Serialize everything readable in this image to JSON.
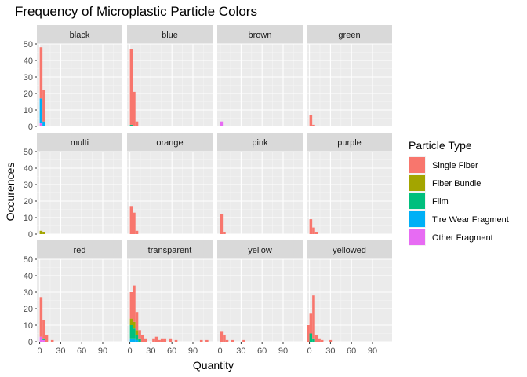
{
  "chart_data": {
    "type": "bar",
    "title": "Frequency of Microplastic Particle Colors",
    "xlabel": "Quantity",
    "ylabel": "Occurences",
    "xlim": [
      -4,
      118
    ],
    "ylim": [
      0,
      50
    ],
    "x_ticks": [
      0,
      30,
      60,
      90
    ],
    "y_ticks": [
      0,
      10,
      20,
      30,
      40,
      50
    ],
    "bin_width": 4,
    "grid": true,
    "legend": {
      "title": "Particle Type",
      "position": "right",
      "items": [
        {
          "name": "Single Fiber",
          "color": "#F8766D"
        },
        {
          "name": "Fiber Bundle",
          "color": "#A3A500"
        },
        {
          "name": "Film",
          "color": "#00BF7D"
        },
        {
          "name": "Tire Wear Fragment",
          "color": "#00B0F6"
        },
        {
          "name": "Other Fragment",
          "color": "#E76BF3"
        }
      ]
    },
    "panels": [
      {
        "label": "black",
        "stacks": [
          {
            "x": 0,
            "counts": [
              31,
              0,
              0,
              15,
              2
            ]
          },
          {
            "x": 4,
            "counts": [
              19,
              0,
              0,
              3,
              0
            ]
          }
        ]
      },
      {
        "label": "blue",
        "stacks": [
          {
            "x": 0,
            "counts": [
              46,
              0,
              1,
              0,
              0
            ]
          },
          {
            "x": 4,
            "counts": [
              21,
              0,
              0,
              0,
              0
            ]
          },
          {
            "x": 8,
            "counts": [
              3,
              0,
              0,
              0,
              0
            ]
          }
        ]
      },
      {
        "label": "brown",
        "stacks": [
          {
            "x": 0,
            "counts": [
              0,
              0,
              0,
              0,
              3
            ]
          }
        ]
      },
      {
        "label": "green",
        "stacks": [
          {
            "x": 0,
            "counts": [
              7,
              0,
              0,
              0,
              0
            ]
          },
          {
            "x": 4,
            "counts": [
              1,
              0,
              0,
              0,
              0
            ]
          }
        ]
      },
      {
        "label": "multi",
        "stacks": [
          {
            "x": 0,
            "counts": [
              0,
              2,
              0,
              0,
              0
            ]
          },
          {
            "x": 4,
            "counts": [
              0,
              1,
              0,
              0,
              0
            ]
          }
        ]
      },
      {
        "label": "orange",
        "stacks": [
          {
            "x": 0,
            "counts": [
              17,
              0,
              0,
              0,
              0
            ]
          },
          {
            "x": 4,
            "counts": [
              13,
              0,
              0,
              0,
              0
            ]
          },
          {
            "x": 8,
            "counts": [
              2,
              0,
              0,
              0,
              0
            ]
          }
        ]
      },
      {
        "label": "pink",
        "stacks": [
          {
            "x": 0,
            "counts": [
              12,
              0,
              0,
              0,
              0
            ]
          },
          {
            "x": 4,
            "counts": [
              1,
              0,
              0,
              0,
              0
            ]
          }
        ]
      },
      {
        "label": "purple",
        "stacks": [
          {
            "x": 0,
            "counts": [
              9,
              0,
              0,
              0,
              0
            ]
          },
          {
            "x": 4,
            "counts": [
              4,
              0,
              0,
              0,
              0
            ]
          },
          {
            "x": 8,
            "counts": [
              1,
              0,
              0,
              0,
              0
            ]
          }
        ]
      },
      {
        "label": "red",
        "stacks": [
          {
            "x": 0,
            "counts": [
              24,
              0,
              0,
              0,
              3
            ]
          },
          {
            "x": 4,
            "counts": [
              11,
              0,
              1,
              0,
              1
            ]
          },
          {
            "x": 8,
            "counts": [
              4,
              0,
              0,
              0,
              0
            ]
          },
          {
            "x": 16,
            "counts": [
              1,
              0,
              0,
              0,
              0
            ]
          }
        ]
      },
      {
        "label": "transparent",
        "stacks": [
          {
            "x": 0,
            "counts": [
              16,
              4,
              8,
              2,
              0
            ]
          },
          {
            "x": 4,
            "counts": [
              22,
              4,
              6,
              2,
              0
            ]
          },
          {
            "x": 8,
            "counts": [
              11,
              3,
              3,
              1,
              0
            ]
          },
          {
            "x": 12,
            "counts": [
              5,
              0,
              2,
              0,
              0
            ]
          },
          {
            "x": 16,
            "counts": [
              4,
              0,
              0,
              0,
              0
            ]
          },
          {
            "x": 20,
            "counts": [
              2,
              0,
              0,
              0,
              0
            ]
          },
          {
            "x": 32,
            "counts": [
              2,
              0,
              0,
              0,
              0
            ]
          },
          {
            "x": 36,
            "counts": [
              3,
              0,
              0,
              0,
              0
            ]
          },
          {
            "x": 40,
            "counts": [
              1,
              0,
              0,
              0,
              0
            ]
          },
          {
            "x": 44,
            "counts": [
              2,
              0,
              0,
              0,
              0
            ]
          },
          {
            "x": 48,
            "counts": [
              2,
              0,
              0,
              0,
              0
            ]
          },
          {
            "x": 56,
            "counts": [
              2,
              0,
              0,
              0,
              0
            ]
          },
          {
            "x": 64,
            "counts": [
              1,
              0,
              0,
              0,
              0
            ]
          },
          {
            "x": 100,
            "counts": [
              1,
              0,
              0,
              0,
              0
            ]
          },
          {
            "x": 108,
            "counts": [
              1,
              0,
              0,
              0,
              0
            ]
          }
        ]
      },
      {
        "label": "yellow",
        "stacks": [
          {
            "x": 0,
            "counts": [
              6,
              0,
              0,
              0,
              0
            ]
          },
          {
            "x": 4,
            "counts": [
              4,
              0,
              0,
              0,
              0
            ]
          },
          {
            "x": 8,
            "counts": [
              1,
              0,
              0,
              0,
              0
            ]
          },
          {
            "x": 16,
            "counts": [
              1,
              0,
              0,
              0,
              0
            ]
          },
          {
            "x": 32,
            "counts": [
              1,
              0,
              0,
              0,
              0
            ]
          }
        ]
      },
      {
        "label": "yellowed",
        "stacks": [
          {
            "x": -4,
            "counts": [
              10,
              0,
              0,
              0,
              0
            ]
          },
          {
            "x": 0,
            "counts": [
              12,
              0,
              5,
              0,
              0
            ]
          },
          {
            "x": 4,
            "counts": [
              26,
              0,
              2,
              0,
              0
            ]
          },
          {
            "x": 8,
            "counts": [
              4,
              0,
              0,
              0,
              0
            ]
          },
          {
            "x": 12,
            "counts": [
              2,
              0,
              0,
              0,
              0
            ]
          },
          {
            "x": 16,
            "counts": [
              1,
              0,
              0,
              0,
              0
            ]
          },
          {
            "x": 28,
            "counts": [
              1,
              0,
              0,
              0,
              0
            ]
          }
        ]
      }
    ]
  }
}
